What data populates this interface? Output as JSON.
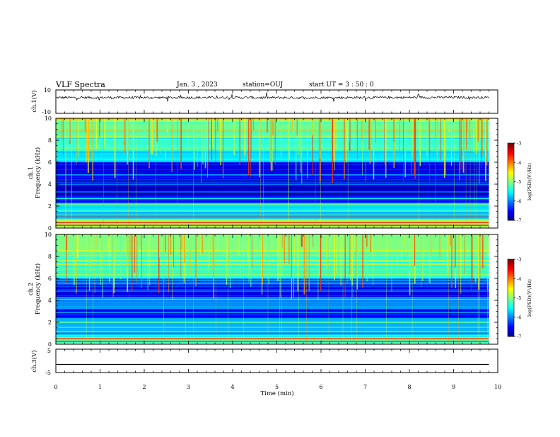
{
  "header": {
    "title": "VLF Spectra",
    "date": "Jan. 3 , 2023",
    "station": "station=OUJ",
    "start": "start UT = 3 : 50 : 0"
  },
  "colors": {
    "low": "#00008b",
    "mid": "#00c8c8",
    "high": "#ff0000",
    "trace": "#000000"
  },
  "chart_data": [
    {
      "type": "line",
      "name": "ch1-waveform",
      "ylabel": "ch.1(V)",
      "ylim": [
        -10,
        10
      ],
      "yticks": [
        "10",
        "-10"
      ],
      "x": [
        0,
        1,
        2,
        3,
        4,
        5,
        6,
        7,
        8,
        9,
        9.8
      ],
      "y": [
        3.5,
        3.5,
        3.4,
        3.5,
        3.5,
        3.4,
        3.4,
        3.5,
        3.6,
        3.6,
        3.5
      ]
    },
    {
      "type": "heatmap",
      "name": "ch1-spectrogram",
      "ylabel": "ch.1 Frequency (kHz)",
      "ylim": [
        0,
        10
      ],
      "yticks": [
        "0",
        "2",
        "4",
        "6",
        "8",
        "10"
      ],
      "colorbar_label": "log(PSD)(V²/Hz)",
      "colorbar_ticks": [
        "-3",
        "-4",
        "-5",
        "-6",
        "-7"
      ],
      "bands_khz": [
        [
          0,
          0.3,
          0.55
        ],
        [
          0.3,
          0.8,
          0.5
        ],
        [
          0.8,
          1.6,
          0.3
        ],
        [
          1.6,
          2.2,
          0.35
        ],
        [
          2.2,
          3.0,
          0.15
        ],
        [
          3.0,
          4.4,
          0.05
        ],
        [
          4.4,
          5.0,
          0.1
        ],
        [
          5.0,
          6.0,
          0.1
        ],
        [
          6.0,
          7.0,
          0.35
        ],
        [
          7.0,
          8.5,
          0.42
        ],
        [
          8.5,
          10,
          0.48
        ]
      ]
    },
    {
      "type": "heatmap",
      "name": "ch2-spectrogram",
      "ylabel": "ch.2 Frequency (kHz)",
      "ylim": [
        0,
        10
      ],
      "yticks": [
        "0",
        "2",
        "4",
        "6",
        "8",
        "10"
      ],
      "colorbar_label": "log(PSD)(V²/Hz)",
      "colorbar_ticks": [
        "-3",
        "-4",
        "-5",
        "-6",
        "-7"
      ],
      "bands_khz": [
        [
          0,
          0.3,
          0.5
        ],
        [
          0.3,
          0.8,
          0.45
        ],
        [
          0.8,
          1.6,
          0.3
        ],
        [
          1.6,
          2.4,
          0.3
        ],
        [
          2.4,
          3.2,
          0.12
        ],
        [
          3.2,
          4.2,
          0.25
        ],
        [
          4.2,
          5.4,
          0.1
        ],
        [
          5.4,
          6.0,
          0.2
        ],
        [
          6.0,
          7.2,
          0.4
        ],
        [
          7.2,
          8.5,
          0.45
        ],
        [
          8.5,
          10,
          0.5
        ]
      ]
    },
    {
      "type": "line",
      "name": "ch3-waveform",
      "ylabel": "ch.3(V)",
      "ylim": [
        -5,
        5
      ],
      "yticks": [
        "5",
        "-5"
      ],
      "x": [
        0,
        9.8
      ],
      "y": [
        -1.5,
        -1.5
      ]
    }
  ],
  "xaxis": {
    "label": "Time (min)",
    "range": [
      0,
      10
    ],
    "ticks": [
      "0",
      "1",
      "2",
      "3",
      "4",
      "5",
      "6",
      "7",
      "8",
      "9",
      "10"
    ],
    "data_end": 9.8
  }
}
